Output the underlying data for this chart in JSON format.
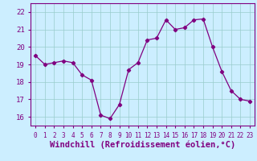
{
  "x": [
    0,
    1,
    2,
    3,
    4,
    5,
    6,
    7,
    8,
    9,
    10,
    11,
    12,
    13,
    14,
    15,
    16,
    17,
    18,
    19,
    20,
    21,
    22,
    23
  ],
  "y": [
    19.5,
    19.0,
    19.1,
    19.2,
    19.1,
    18.4,
    18.1,
    16.1,
    15.9,
    16.7,
    18.7,
    19.1,
    20.4,
    20.5,
    21.55,
    21.0,
    21.1,
    21.55,
    21.6,
    20.0,
    18.6,
    17.5,
    17.0,
    16.9
  ],
  "line_color": "#800080",
  "marker": "D",
  "marker_size": 2.2,
  "bg_color": "#cceeff",
  "grid_color": "#99cccc",
  "xlabel": "Windchill (Refroidissement éolien,°C)",
  "xlabel_color": "#800080",
  "ylim": [
    15.5,
    22.5
  ],
  "yticks": [
    16,
    17,
    18,
    19,
    20,
    21,
    22
  ],
  "xticks": [
    0,
    1,
    2,
    3,
    4,
    5,
    6,
    7,
    8,
    9,
    10,
    11,
    12,
    13,
    14,
    15,
    16,
    17,
    18,
    19,
    20,
    21,
    22,
    23
  ],
  "tick_color": "#800080",
  "spine_color": "#800080"
}
